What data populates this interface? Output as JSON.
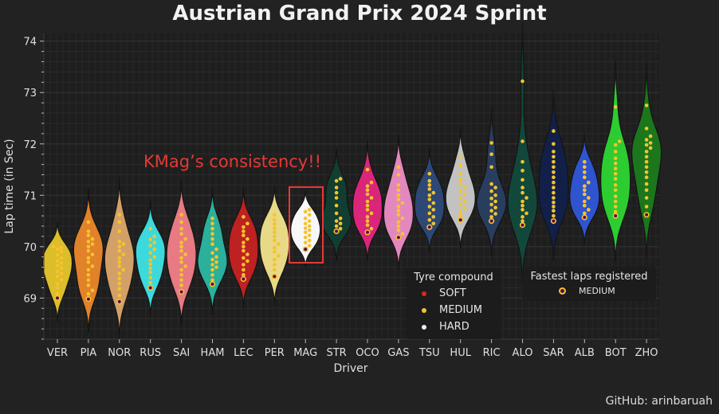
{
  "title": "Austrian Grand Prix 2024 Sprint",
  "credit": "GitHub: arinbaruah",
  "annotation": {
    "text": "KMag’s consistency!!",
    "color": "#e53935",
    "highlight_driver": "MAG"
  },
  "legend_tyre": {
    "title": "Tyre compound",
    "items": [
      {
        "label": "SOFT",
        "color": "#da291c"
      },
      {
        "label": "MEDIUM",
        "color": "#f4c430"
      },
      {
        "label": "HARD",
        "color": "#f0f0f0"
      }
    ]
  },
  "legend_fastest": {
    "title": "Fastest laps registered",
    "label": "MEDIUM"
  },
  "chart_data": {
    "type": "violin+swarm",
    "xlabel": "Driver",
    "ylabel": "Lap time (in Sec)",
    "ylim": [
      68.2,
      74.15
    ],
    "yticks": [
      69,
      70,
      71,
      72,
      73,
      74
    ],
    "grid": true,
    "drivers": [
      {
        "name": "VER",
        "color": "#e3c32b",
        "fastest": 69.0,
        "laps": [
          69.0,
          69.08,
          69.2,
          69.28,
          69.35,
          69.42,
          69.48,
          69.52,
          69.58,
          69.63,
          69.68,
          69.72,
          69.78,
          69.84,
          69.9,
          69.95,
          69.98,
          70.0
        ]
      },
      {
        "name": "PIA",
        "color": "#e8852a",
        "fastest": 68.98,
        "laps": [
          68.98,
          69.08,
          69.15,
          69.25,
          69.35,
          69.45,
          69.55,
          69.62,
          69.7,
          69.78,
          69.85,
          69.92,
          70.0,
          70.05,
          70.1,
          70.15,
          70.22,
          70.3,
          70.48
        ]
      },
      {
        "name": "NOR",
        "color": "#d9a56b",
        "fastest": 68.93,
        "laps": [
          68.93,
          69.05,
          69.18,
          69.28,
          69.38,
          69.48,
          69.55,
          69.62,
          69.7,
          69.78,
          69.85,
          69.92,
          70.0,
          70.05,
          70.1,
          70.3,
          70.48,
          70.62
        ]
      },
      {
        "name": "RUS",
        "color": "#3de0e3",
        "fastest": 69.2,
        "laps": [
          69.2,
          69.3,
          69.4,
          69.5,
          69.58,
          69.66,
          69.74,
          69.8,
          69.88,
          69.95,
          70.02,
          70.08,
          70.14,
          70.2,
          70.35
        ]
      },
      {
        "name": "SAI",
        "color": "#ee7d86",
        "fastest": 69.12,
        "laps": [
          69.12,
          69.25,
          69.35,
          69.45,
          69.55,
          69.62,
          69.7,
          69.78,
          69.85,
          69.92,
          70.0,
          70.08,
          70.15,
          70.25,
          70.35,
          70.48,
          70.62
        ]
      },
      {
        "name": "HAM",
        "color": "#2bb5a0",
        "fastest": 69.27,
        "laps": [
          69.27,
          69.35,
          69.45,
          69.55,
          69.6,
          69.65,
          69.7,
          69.75,
          69.8,
          69.88,
          69.95,
          70.05,
          70.15,
          70.25,
          70.35,
          70.45,
          70.55
        ]
      },
      {
        "name": "LEC",
        "color": "#c42222",
        "fastest": 69.37,
        "laps": [
          69.37,
          69.45,
          69.55,
          69.65,
          69.72,
          69.78,
          69.85,
          69.92,
          70.0,
          70.08,
          70.15,
          70.22,
          70.3,
          70.38,
          70.45,
          70.58
        ]
      },
      {
        "name": "PER",
        "color": "#efe08a",
        "fastest": 69.42,
        "laps": [
          69.42,
          69.55,
          69.65,
          69.75,
          69.82,
          69.9,
          69.98,
          70.05,
          70.12,
          70.2,
          70.28,
          70.36,
          70.44,
          70.52,
          70.62
        ]
      },
      {
        "name": "MAG",
        "color": "#ffffff",
        "fastest": 69.95,
        "laps": [
          69.95,
          70.02,
          70.08,
          70.12,
          70.18,
          70.22,
          70.28,
          70.32,
          70.36,
          70.4,
          70.45,
          70.5,
          70.55,
          70.62,
          70.68,
          70.72
        ]
      },
      {
        "name": "STR",
        "color": "#123f32",
        "fastest": 70.3,
        "laps": [
          70.3,
          70.35,
          70.4,
          70.45,
          70.5,
          70.55,
          70.65,
          70.8,
          70.95,
          71.05,
          71.15,
          71.28,
          71.32
        ]
      },
      {
        "name": "OCO",
        "color": "#e0267d",
        "fastest": 70.28,
        "laps": [
          70.28,
          70.35,
          70.42,
          70.5,
          70.58,
          70.65,
          70.72,
          70.8,
          70.88,
          70.95,
          71.02,
          71.1,
          71.18,
          71.25,
          71.5
        ]
      },
      {
        "name": "GAS",
        "color": "#ea8cc4",
        "fastest": 70.18,
        "laps": [
          70.18,
          70.25,
          70.32,
          70.4,
          70.48,
          70.55,
          70.62,
          70.7,
          70.78,
          70.85,
          70.92,
          71.0,
          71.1,
          71.2,
          71.4,
          71.55
        ]
      },
      {
        "name": "TSU",
        "color": "#2e4a78",
        "fastest": 70.38,
        "laps": [
          70.38,
          70.45,
          70.52,
          70.58,
          70.65,
          70.72,
          70.78,
          70.85,
          70.92,
          71.0,
          71.05,
          71.12,
          71.2,
          71.28,
          71.42
        ]
      },
      {
        "name": "HUL",
        "color": "#c8c8c8",
        "fastest": 70.52,
        "laps": [
          70.52,
          70.6,
          70.68,
          70.75,
          70.82,
          70.88,
          70.95,
          71.02,
          71.08,
          71.15,
          71.22,
          71.3,
          71.42,
          71.58,
          71.75
        ]
      },
      {
        "name": "RIC",
        "color": "#2a3e60",
        "fastest": 70.5,
        "laps": [
          70.5,
          70.58,
          70.64,
          70.7,
          70.76,
          70.82,
          70.88,
          70.94,
          71.0,
          71.08,
          71.15,
          71.22,
          71.55,
          71.8,
          72.02
        ]
      },
      {
        "name": "ALO",
        "color": "#124a3c",
        "fastest": 70.42,
        "laps": [
          70.42,
          70.5,
          70.58,
          70.65,
          70.72,
          70.8,
          70.88,
          70.95,
          71.05,
          71.15,
          71.3,
          71.48,
          71.65,
          72.05,
          73.22
        ]
      },
      {
        "name": "SAR",
        "color": "#12204a",
        "fastest": 70.5,
        "laps": [
          70.5,
          70.6,
          70.7,
          70.78,
          70.86,
          70.95,
          71.05,
          71.15,
          71.25,
          71.35,
          71.45,
          71.55,
          71.65,
          71.75,
          71.85,
          72.0,
          72.25
        ]
      },
      {
        "name": "ALB",
        "color": "#2f56d6",
        "fastest": 70.57,
        "laps": [
          70.57,
          70.65,
          70.72,
          70.8,
          70.88,
          70.95,
          71.02,
          71.1,
          71.18,
          71.25,
          71.35,
          71.45,
          71.55,
          71.65
        ]
      },
      {
        "name": "BOT",
        "color": "#2ed232",
        "fastest": 70.6,
        "laps": [
          70.6,
          70.68,
          70.78,
          70.88,
          70.98,
          71.1,
          71.2,
          71.32,
          71.42,
          71.52,
          71.62,
          71.72,
          71.85,
          71.98,
          72.05,
          72.72
        ]
      },
      {
        "name": "ZHO",
        "color": "#1c7a1c",
        "fastest": 70.62,
        "laps": [
          70.62,
          70.78,
          70.95,
          71.1,
          71.22,
          71.35,
          71.45,
          71.55,
          71.65,
          71.75,
          71.85,
          71.92,
          71.98,
          72.02,
          72.08,
          72.15,
          72.3,
          72.75
        ]
      }
    ]
  }
}
